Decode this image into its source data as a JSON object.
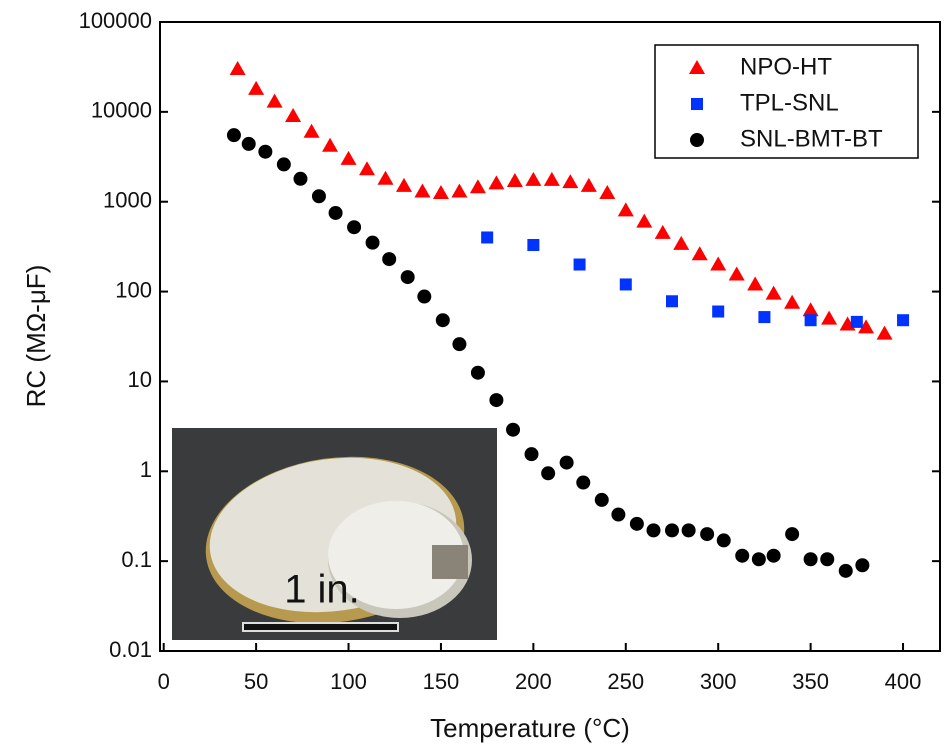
{
  "chart_data": {
    "type": "scatter",
    "x_label": "Temperature (°C)",
    "y_label": "RC (MΩ-μF)",
    "log_y": true,
    "xlim": [
      -2,
      420
    ],
    "ylim": [
      0.01,
      100000
    ],
    "xticks": [
      0,
      50,
      100,
      150,
      200,
      250,
      300,
      350,
      400
    ],
    "yticks": [
      0.01,
      0.1,
      1,
      10,
      100,
      1000,
      10000,
      100000
    ],
    "legend": "top-right",
    "annotation": "1 in.",
    "series": [
      {
        "name": "NPO-HT",
        "color": "#ff0000",
        "marker": "triangle",
        "x": [
          40,
          50,
          60,
          70,
          80,
          90,
          100,
          110,
          120,
          130,
          140,
          150,
          160,
          170,
          180,
          190,
          200,
          210,
          220,
          230,
          240,
          250,
          260,
          270,
          280,
          290,
          300,
          310,
          320,
          330,
          340,
          350,
          360,
          370,
          380,
          390
        ],
        "values": [
          30000,
          18000,
          13000,
          9000,
          6000,
          4200,
          3000,
          2300,
          1800,
          1500,
          1300,
          1250,
          1300,
          1450,
          1600,
          1700,
          1750,
          1750,
          1650,
          1500,
          1250,
          800,
          600,
          450,
          340,
          260,
          200,
          155,
          120,
          95,
          75,
          62,
          50,
          43,
          40,
          34
        ]
      },
      {
        "name": "TPL-SNL",
        "color": "#0033ff",
        "marker": "square",
        "x": [
          175,
          200,
          225,
          250,
          275,
          300,
          325,
          350,
          375,
          400
        ],
        "values": [
          400,
          330,
          200,
          120,
          78,
          60,
          52,
          48,
          46,
          48
        ]
      },
      {
        "name": "SNL-BMT-BT",
        "color": "#000000",
        "marker": "circle",
        "x": [
          38,
          46,
          55,
          65,
          74,
          84,
          93,
          103,
          113,
          122,
          132,
          141,
          151,
          160,
          170,
          180,
          189,
          199,
          208,
          218,
          227,
          237,
          246,
          256,
          265,
          275,
          284,
          294,
          303,
          313,
          322,
          330,
          340,
          350,
          359,
          369,
          378
        ],
        "values": [
          5500,
          4400,
          3600,
          2600,
          1800,
          1150,
          750,
          520,
          350,
          230,
          145,
          88,
          48,
          26,
          12.5,
          6.2,
          2.9,
          1.55,
          0.95,
          1.25,
          0.75,
          0.48,
          0.33,
          0.26,
          0.22,
          0.22,
          0.22,
          0.2,
          0.17,
          0.115,
          0.105,
          0.115,
          0.2,
          0.105,
          0.105,
          0.078,
          0.09
        ]
      }
    ]
  }
}
